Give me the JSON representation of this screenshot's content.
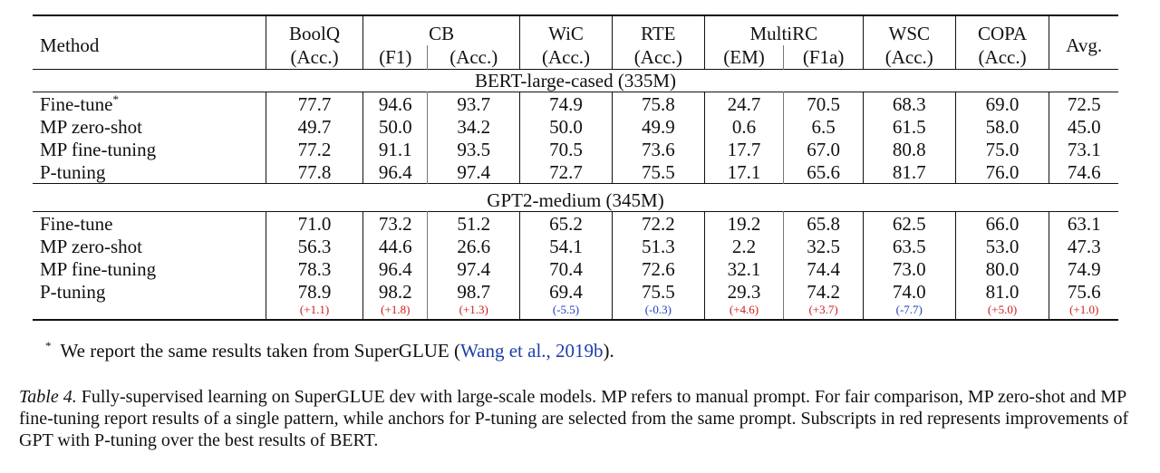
{
  "table": {
    "header_row1": {
      "method": "Method",
      "boolq": "BoolQ",
      "cb": "CB",
      "wic": "WiC",
      "rte": "RTE",
      "multirc": "MultiRC",
      "wsc": "WSC",
      "copa": "COPA",
      "avg": "Avg."
    },
    "header_row2": [
      "(Acc.)",
      "(F1)",
      "(Acc.)",
      "(Acc.)",
      "(Acc.)",
      "(EM)",
      "(F1a)",
      "(Acc.)",
      "(Acc.)"
    ],
    "sections": [
      {
        "title": "BERT-large-cased (335M)",
        "rows": [
          {
            "method": "Fine-tune",
            "marker": "*",
            "values": [
              "77.7",
              "94.6",
              "93.7",
              "74.9",
              "75.8",
              "24.7",
              "70.5",
              "68.3",
              "69.0",
              "72.5"
            ]
          },
          {
            "method": "MP zero-shot",
            "values": [
              "49.7",
              "50.0",
              "34.2",
              "50.0",
              "49.9",
              "0.6",
              "6.5",
              "61.5",
              "58.0",
              "45.0"
            ]
          },
          {
            "method": "MP fine-tuning",
            "values": [
              "77.2",
              "91.1",
              "93.5",
              "70.5",
              "73.6",
              "17.7",
              "67.0",
              "80.8",
              "75.0",
              "73.1"
            ]
          },
          {
            "method": "P-tuning",
            "values": [
              "77.8",
              "96.4",
              "97.4",
              "72.7",
              "75.5",
              "17.1",
              "65.6",
              "81.7",
              "76.0",
              "74.6"
            ]
          }
        ]
      },
      {
        "title": "GPT2-medium (345M)",
        "rows": [
          {
            "method": "Fine-tune",
            "values": [
              "71.0",
              "73.2",
              "51.2",
              "65.2",
              "72.2",
              "19.2",
              "65.8",
              "62.5",
              "66.0",
              "63.1"
            ]
          },
          {
            "method": "MP zero-shot",
            "values": [
              "56.3",
              "44.6",
              "26.6",
              "54.1",
              "51.3",
              "2.2",
              "32.5",
              "63.5",
              "53.0",
              "47.3"
            ]
          },
          {
            "method": "MP fine-tuning",
            "values": [
              "78.3",
              "96.4",
              "97.4",
              "70.4",
              "72.6",
              "32.1",
              "74.4",
              "73.0",
              "80.0",
              "74.9"
            ]
          },
          {
            "method": "P-tuning",
            "values": [
              "78.9",
              "98.2",
              "98.7",
              "69.4",
              "75.5",
              "29.3",
              "74.2",
              "74.0",
              "81.0",
              "75.6"
            ]
          }
        ],
        "deltas": [
          "(+1.1)",
          "(+1.8)",
          "(+1.3)",
          "(-5.5)",
          "(-0.3)",
          "(+4.6)",
          "(+3.7)",
          "(-7.7)",
          "(+5.0)",
          "(+1.0)"
        ]
      }
    ]
  },
  "colors": {
    "improvement": "#d01c1c",
    "decline": "#1f3fbf",
    "citation": "#1f3fa8"
  },
  "footnote": {
    "marker": "*",
    "text_before": "We report the same results taken from SuperGLUE (",
    "citation": "Wang et al., 2019b",
    "text_after": ")."
  },
  "caption": {
    "label": "Table 4.",
    "text": "Fully-supervised learning on SuperGLUE dev with large-scale models. MP refers to manual prompt. For fair comparison, MP zero-shot and MP fine-tuning report results of a single pattern, while anchors for P-tuning are selected from the same prompt. Subscripts in red represents improvements of GPT with P-tuning over the best results of BERT."
  }
}
